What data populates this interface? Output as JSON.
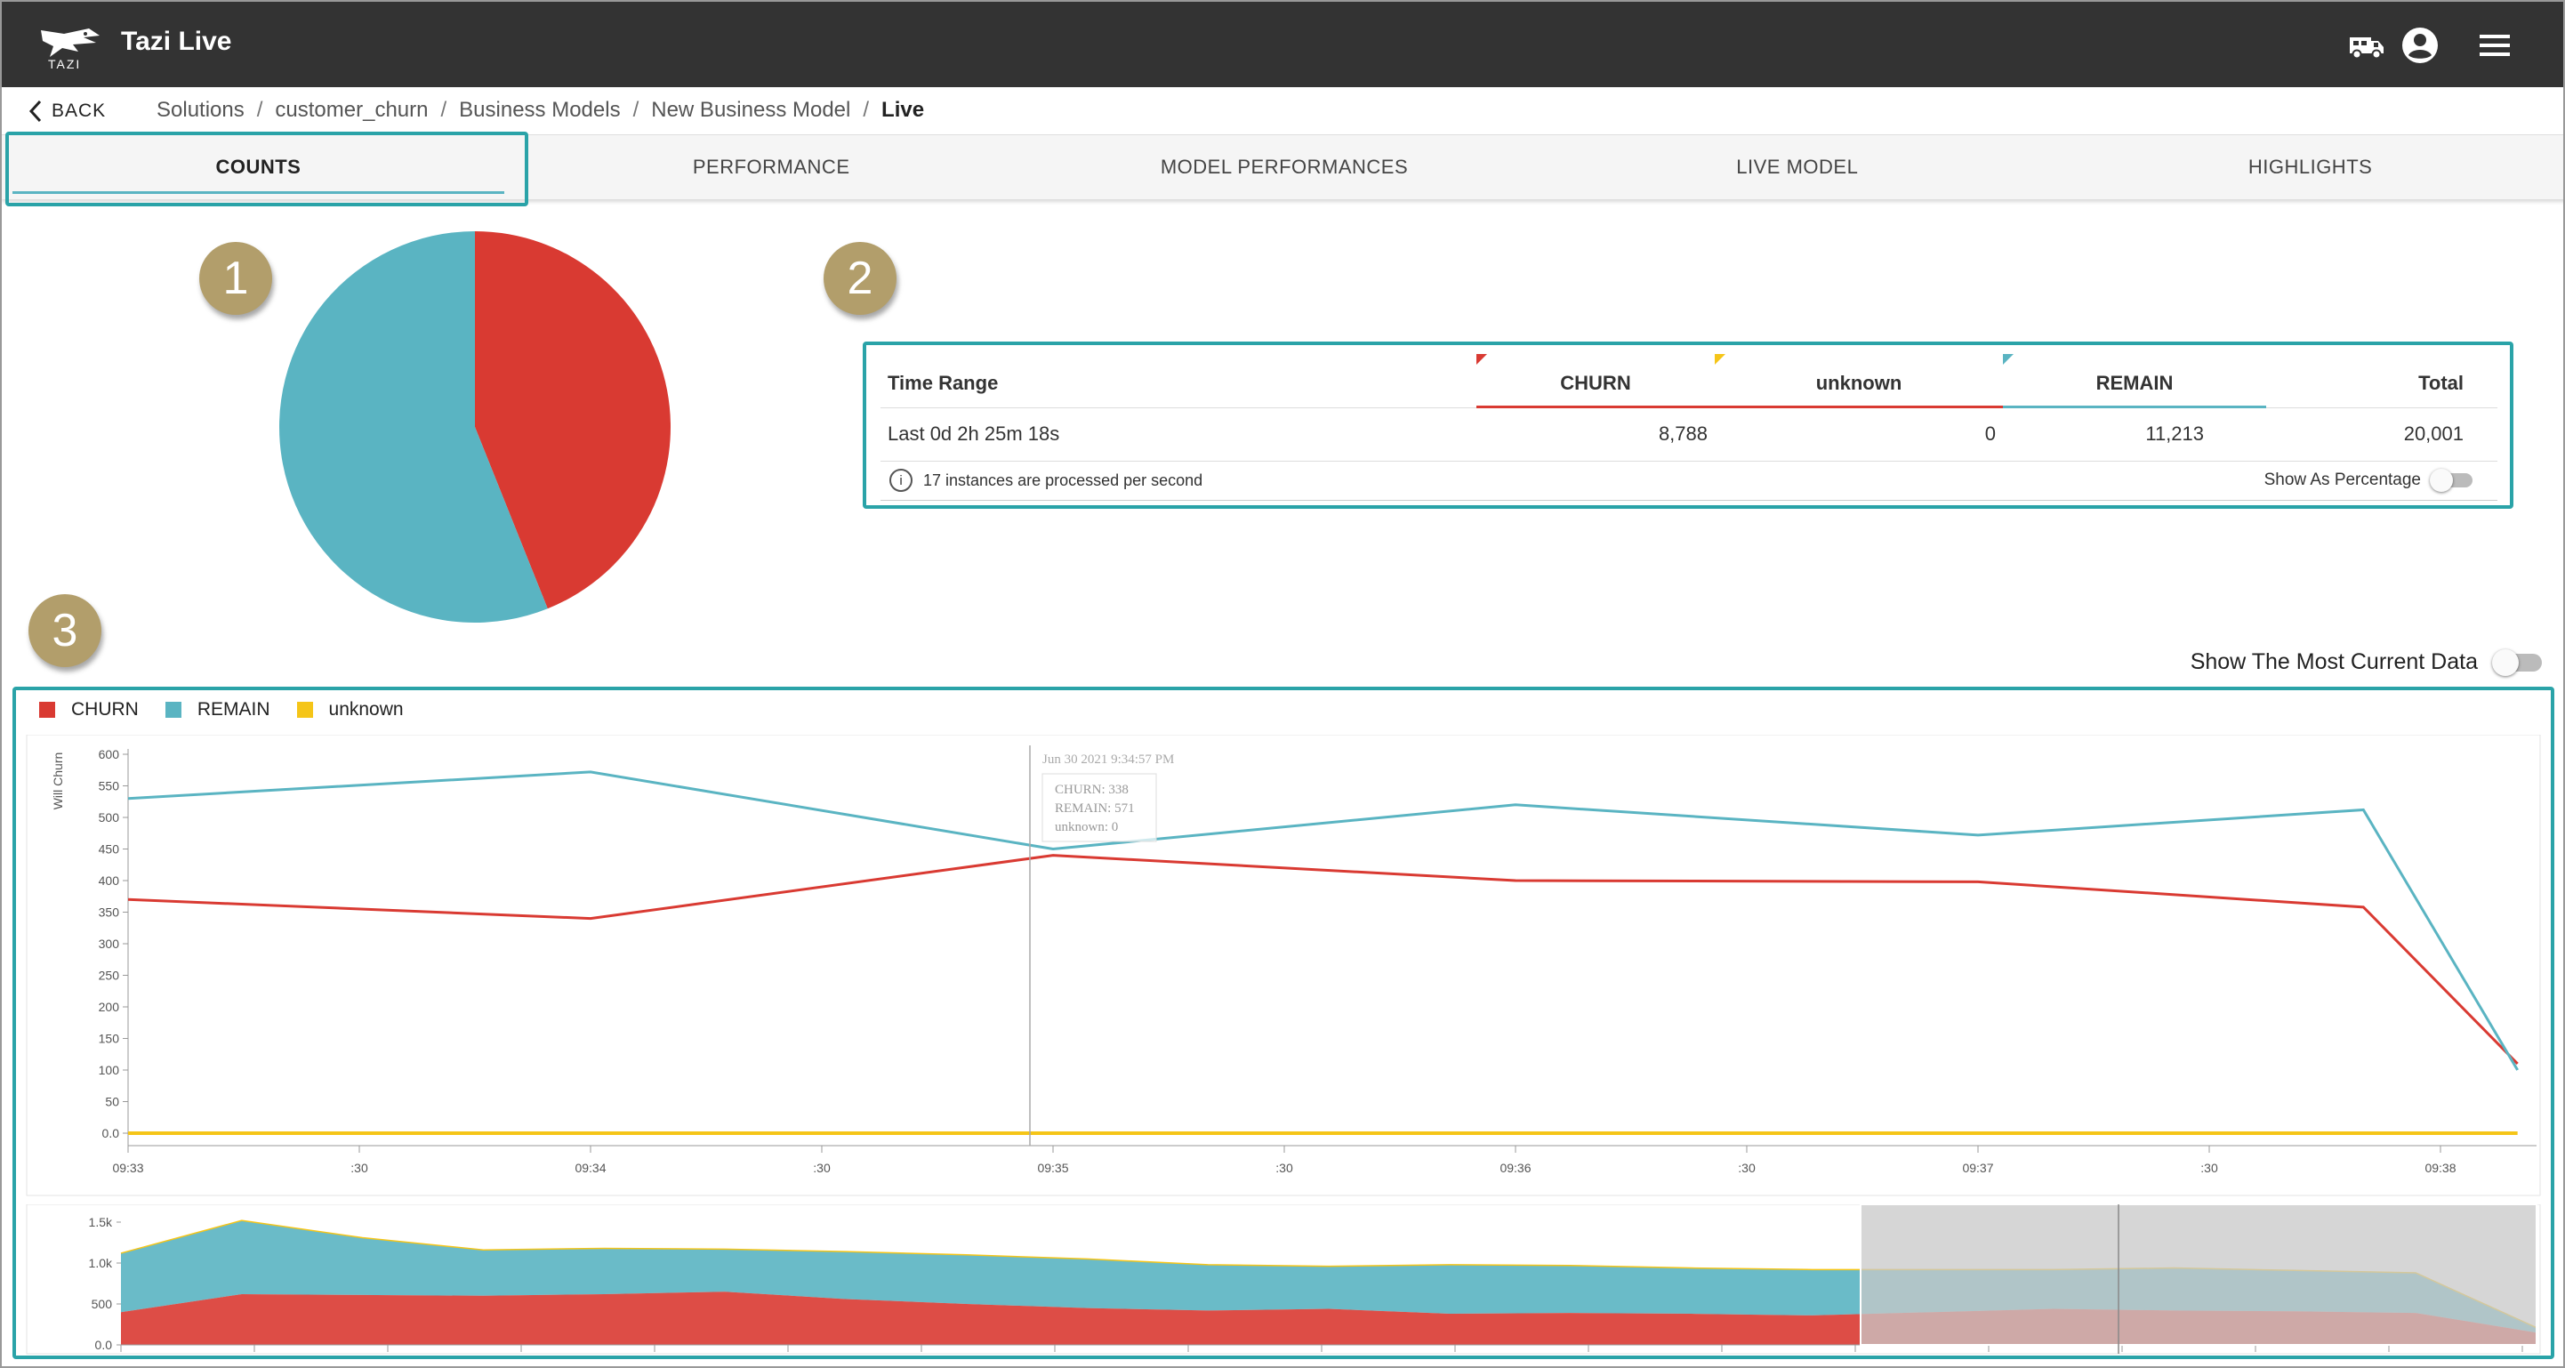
{
  "app": {
    "title": "Tazi Live",
    "logo_text": "TAZI"
  },
  "topbar": {
    "icons": [
      "truck-icon",
      "account-circle-icon",
      "hamburger-menu-icon"
    ]
  },
  "breadcrumb": {
    "back_label": "BACK",
    "items": [
      "Solutions",
      "customer_churn",
      "Business Models",
      "New Business Model",
      "Live"
    ],
    "separator": "/"
  },
  "tabs": [
    "COUNTS",
    "PERFORMANCE",
    "MODEL PERFORMANCES",
    "LIVE MODEL",
    "HIGHLIGHTS"
  ],
  "active_tab": "COUNTS",
  "badges": [
    "1",
    "2",
    "3"
  ],
  "colors": {
    "churn": "#d93a32",
    "remain": "#5ab4c2",
    "unknown": "#f5c518",
    "highlight": "#2aa3a8",
    "badge": "#b29e6b"
  },
  "summary": {
    "headers": {
      "time_range": "Time Range",
      "churn": "CHURN",
      "unknown": "unknown",
      "remain": "REMAIN",
      "total": "Total"
    },
    "row": {
      "time_range": "Last 0d 2h 25m 18s",
      "churn": "8,788",
      "unknown": "0",
      "remain": "11,213",
      "total": "20,001"
    },
    "info": "17 instances are processed per second",
    "percentage_toggle_label": "Show As Percentage",
    "percentage_toggle_on": false
  },
  "current_data_toggle": {
    "label": "Show The Most Current Data",
    "on": false
  },
  "chart_data": [
    {
      "type": "pie",
      "categories": [
        "CHURN",
        "REMAIN",
        "unknown"
      ],
      "values": [
        8788,
        11213,
        0
      ]
    },
    {
      "type": "line",
      "legend": [
        "CHURN",
        "REMAIN",
        "unknown"
      ],
      "ylabel": "Will Churn",
      "ylim": [
        0,
        600
      ],
      "yticks": [
        "0.0",
        "50",
        "100",
        "150",
        "200",
        "250",
        "300",
        "350",
        "400",
        "450",
        "500",
        "550",
        "600"
      ],
      "x_labels": [
        "09:33",
        ":30",
        "09:34",
        ":30",
        "09:35",
        ":30",
        "09:36",
        ":30",
        "09:37",
        ":30",
        "09:38"
      ],
      "x": [
        "09:33:00",
        "09:34:00",
        "09:35:00",
        "09:36:00",
        "09:37:00",
        "09:37:50",
        "09:38:10"
      ],
      "series": [
        {
          "name": "CHURN",
          "values": [
            370,
            340,
            440,
            400,
            398,
            358,
            110
          ]
        },
        {
          "name": "REMAIN",
          "values": [
            530,
            572,
            450,
            520,
            472,
            512,
            100
          ]
        },
        {
          "name": "unknown",
          "values": [
            0,
            0,
            0,
            0,
            0,
            0,
            0
          ]
        }
      ],
      "tooltip": {
        "time": "Jun 30 2021 9:34:57 PM",
        "churn": "CHURN: 338",
        "remain": "REMAIN: 571",
        "unknown": "unknown: 0"
      }
    },
    {
      "type": "area",
      "ylim": [
        0,
        1500
      ],
      "yticks": [
        "0.0",
        "500",
        "1.0k",
        "1.5k"
      ],
      "series": [
        {
          "name": "CHURN",
          "values": [
            400,
            620,
            610,
            600,
            620,
            650,
            560,
            500,
            450,
            420,
            440,
            380,
            390,
            380,
            360,
            400,
            440,
            420,
            410,
            390,
            150
          ]
        },
        {
          "name": "REMAIN",
          "values": [
            720,
            900,
            700,
            560,
            560,
            520,
            580,
            600,
            600,
            560,
            520,
            600,
            580,
            560,
            560,
            520,
            480,
            520,
            500,
            490,
            60
          ]
        }
      ]
    }
  ]
}
